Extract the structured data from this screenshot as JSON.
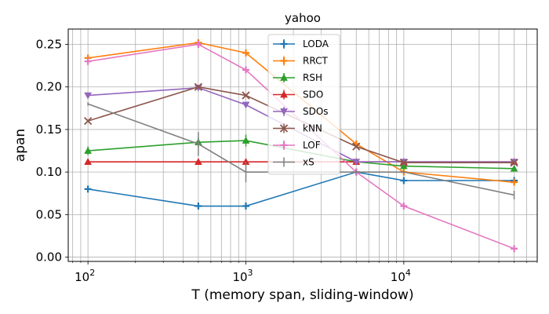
{
  "chart_data": {
    "type": "line",
    "title": "yahoo",
    "xlabel": "T (memory span, sliding-window)",
    "ylabel": "apan",
    "xscale": "log",
    "xlim": [
      75,
      70000
    ],
    "ylim": [
      -0.005,
      0.268
    ],
    "x": [
      100,
      500,
      1000,
      5000,
      10000,
      50000
    ],
    "x_ticks": [
      100,
      1000,
      10000
    ],
    "x_tick_labels": [
      {
        "base": "10",
        "exp": "2"
      },
      {
        "base": "10",
        "exp": "3"
      },
      {
        "base": "10",
        "exp": "4"
      }
    ],
    "y_ticks": [
      0.0,
      0.05,
      0.1,
      0.15,
      0.2,
      0.25
    ],
    "y_tick_labels": [
      "0.00",
      "0.05",
      "0.10",
      "0.15",
      "0.20",
      "0.25"
    ],
    "grid": true,
    "legend_position": "top-center",
    "series": [
      {
        "name": "LODA",
        "color": "#1f77b4",
        "marker": "plus",
        "values": [
          0.08,
          0.06,
          0.06,
          0.1,
          0.09,
          0.09
        ],
        "errors": [
          0.003,
          0.002,
          0.002,
          0.002,
          0.002,
          0.002
        ]
      },
      {
        "name": "RRCT",
        "color": "#ff7f0e",
        "marker": "plus",
        "values": [
          0.234,
          0.252,
          0.24,
          0.133,
          0.1,
          0.088
        ],
        "errors": [
          0.003,
          0.003,
          0.002,
          0.004,
          0.002,
          0.002
        ]
      },
      {
        "name": "RSH",
        "color": "#2ca02c",
        "marker": "tri-up",
        "values": [
          0.125,
          0.135,
          0.137,
          0.112,
          0.107,
          0.104
        ],
        "errors": [
          0.005,
          0.006,
          0.007,
          0.003,
          0.002,
          0.002
        ]
      },
      {
        "name": "SDO",
        "color": "#d62728",
        "marker": "tri-up",
        "values": [
          0.112,
          0.112,
          0.112,
          0.112,
          0.112,
          0.112
        ],
        "errors": [
          0.001,
          0.001,
          0.001,
          0.001,
          0.001,
          0.001
        ]
      },
      {
        "name": "SDOs",
        "color": "#9467bd",
        "marker": "tri-down",
        "values": [
          0.19,
          0.199,
          0.179,
          0.112,
          0.112,
          0.112
        ],
        "errors": [
          0.002,
          0.002,
          0.002,
          0.001,
          0.001,
          0.001
        ]
      },
      {
        "name": "kNN",
        "color": "#8c564b",
        "marker": "x",
        "values": [
          0.16,
          0.2,
          0.19,
          0.13,
          0.111,
          0.111
        ],
        "errors": [
          0.001,
          0.001,
          0.001,
          0.001,
          0.001,
          0.001
        ]
      },
      {
        "name": "LOF",
        "color": "#e377c2",
        "marker": "plus",
        "values": [
          0.23,
          0.25,
          0.22,
          0.1,
          0.06,
          0.01
        ],
        "errors": [
          0.002,
          0.002,
          0.002,
          0.002,
          0.002,
          0.002
        ]
      },
      {
        "name": "xS",
        "color": "#7f7f7f",
        "marker": "none",
        "values": [
          0.18,
          0.133,
          0.1,
          0.1,
          0.1,
          0.073
        ],
        "errors": [
          0.002,
          0.014,
          0.012,
          0.002,
          0.002,
          0.005
        ]
      }
    ]
  }
}
